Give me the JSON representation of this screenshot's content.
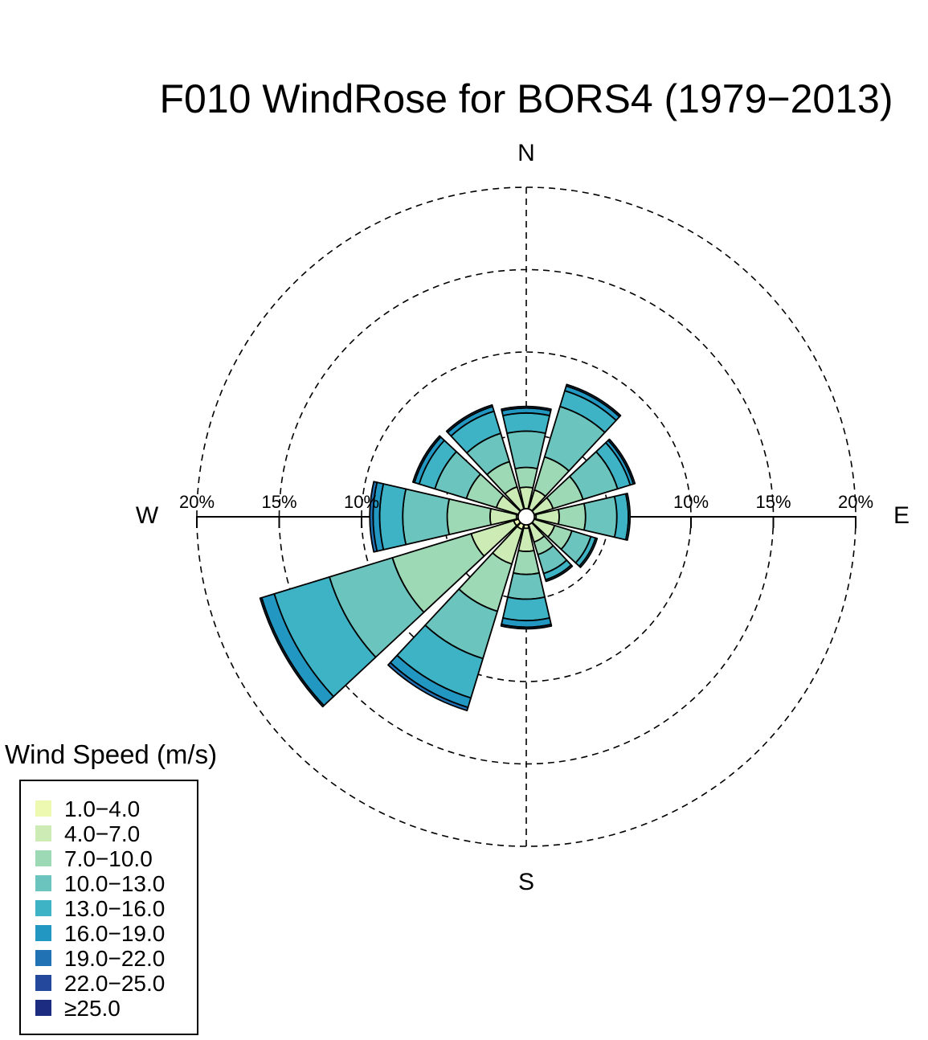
{
  "title": "F010 WindRose for BORS4 (1979−2013)",
  "compass": {
    "n": "N",
    "e": "E",
    "s": "S",
    "w": "W"
  },
  "rings": [
    {
      "value": 10,
      "label": "10%"
    },
    {
      "value": 15,
      "label": "15%"
    },
    {
      "value": 20,
      "label": "20%"
    }
  ],
  "legend": {
    "title": "Wind Speed (m/s)",
    "items": [
      {
        "label": "1.0−4.0",
        "color": "#edf8b1"
      },
      {
        "label": "4.0−7.0",
        "color": "#cdebb4"
      },
      {
        "label": "7.0−10.0",
        "color": "#9ed9b5"
      },
      {
        "label": "10.0−13.0",
        "color": "#6bc4bd"
      },
      {
        "label": "13.0−16.0",
        "color": "#3fb3c6"
      },
      {
        "label": "16.0−19.0",
        "color": "#2297c1"
      },
      {
        "label": "19.0−22.0",
        "color": "#2171b5"
      },
      {
        "label": "22.0−25.0",
        "color": "#24489c"
      },
      {
        "label": "≥25.0",
        "color": "#1c2c80"
      }
    ]
  },
  "chart_data": {
    "type": "windrose",
    "title": "F010 WindRose for BORS4 (1979−2013)",
    "unit": "%",
    "rmax": 20,
    "ring_values": [
      5,
      10,
      15,
      20
    ],
    "speed_bins": [
      "1.0−4.0",
      "4.0−7.0",
      "7.0−10.0",
      "10.0−13.0",
      "13.0−16.0",
      "16.0−19.0",
      "19.0−22.0",
      "22.0−25.0",
      "≥25.0"
    ],
    "directions": [
      {
        "dir_deg": 0,
        "cumulative": [
          0.5,
          1.8,
          3.0,
          5.2,
          6.3,
          6.6,
          6.7,
          6.7,
          6.7
        ]
      },
      {
        "dir_deg": 30,
        "cumulative": [
          0.5,
          1.7,
          3.8,
          7.0,
          8.0,
          8.3,
          8.4,
          8.4,
          8.4
        ]
      },
      {
        "dir_deg": 60,
        "cumulative": [
          0.5,
          1.7,
          3.6,
          5.8,
          6.6,
          6.8,
          6.9,
          6.9,
          6.9
        ]
      },
      {
        "dir_deg": 90,
        "cumulative": [
          0.6,
          2.0,
          3.6,
          5.5,
          6.2,
          6.3,
          6.3,
          6.3,
          6.3
        ]
      },
      {
        "dir_deg": 120,
        "cumulative": [
          0.5,
          1.8,
          2.9,
          4.1,
          4.4,
          4.5,
          4.5,
          4.5,
          4.5
        ]
      },
      {
        "dir_deg": 150,
        "cumulative": [
          0.5,
          1.6,
          2.4,
          3.6,
          4.0,
          4.1,
          4.1,
          4.1,
          4.1
        ]
      },
      {
        "dir_deg": 180,
        "cumulative": [
          0.7,
          2.1,
          3.5,
          5.0,
          6.3,
          6.7,
          6.8,
          6.8,
          6.8
        ]
      },
      {
        "dir_deg": 210,
        "cumulative": [
          0.8,
          3.0,
          6.0,
          9.0,
          11.5,
          12.1,
          12.3,
          12.3,
          12.3
        ]
      },
      {
        "dir_deg": 240,
        "cumulative": [
          0.8,
          3.5,
          8.5,
          12.5,
          16.0,
          16.8,
          16.9,
          16.9,
          16.9
        ]
      },
      {
        "dir_deg": 270,
        "cumulative": [
          0.6,
          2.2,
          4.8,
          7.5,
          8.9,
          9.3,
          9.5,
          9.5,
          9.5
        ]
      },
      {
        "dir_deg": 300,
        "cumulative": [
          0.5,
          1.9,
          3.8,
          5.8,
          6.8,
          7.1,
          7.2,
          7.2,
          7.2
        ]
      },
      {
        "dir_deg": 330,
        "cumulative": [
          0.5,
          1.9,
          3.5,
          5.3,
          6.7,
          7.0,
          7.1,
          7.1,
          7.1
        ]
      }
    ]
  }
}
